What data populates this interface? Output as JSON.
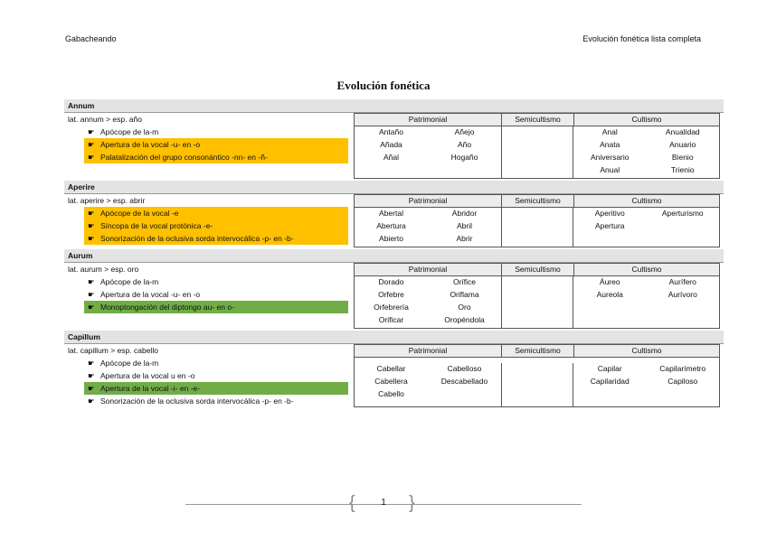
{
  "header": {
    "left": "Gabacheando",
    "right": "Evolución fonética lista completa"
  },
  "title": "Evolución fonética",
  "columns": [
    "Patrimonial",
    "Semicultismo",
    "Cultismo"
  ],
  "colors": {
    "orange": "#ffc000",
    "green": "#70ad47",
    "header_bg": "#e3e3e3"
  },
  "bullet_icon": "hand-pointing-icon",
  "blocks": [
    {
      "name": "Annum",
      "lat": "lat. annum > esp. año",
      "items": [
        {
          "text": "Apócope de la-m",
          "highlight": ""
        },
        {
          "text": "Apertura de la vocal -u- en -o",
          "highlight": "orange"
        },
        {
          "text": "Palatalización del grupo consonántico -nn- en -ñ-",
          "highlight": "orange"
        }
      ],
      "patrimonial": [
        "Antaño",
        "Añejo",
        "Añada",
        "Año",
        "Añal",
        "Hogaño"
      ],
      "semicultismo": [],
      "cultismo": [
        "Anal",
        "Anualidad",
        "Anata",
        "Anuario",
        "Aniversario",
        "Bienio",
        "Anual",
        "Trienio"
      ]
    },
    {
      "name": "Aperire",
      "lat": "lat. aperire > esp. abrir",
      "items": [
        {
          "text": "Apócope de la vocal -e",
          "highlight": "orange"
        },
        {
          "text": "Síncopa de la vocal protónica -e-",
          "highlight": "orange"
        },
        {
          "text": "Sonorización de la oclusiva sorda intervocálica -p- en -b-",
          "highlight": "orange"
        }
      ],
      "patrimonial": [
        "Abertal",
        "Abridor",
        "Abertura",
        "Abril",
        "Abierto",
        "Abrir"
      ],
      "semicultismo": [],
      "cultismo": [
        "Aperitivo",
        "Aperturismo",
        "Apertura"
      ]
    },
    {
      "name": "Aurum",
      "lat": "lat. aurum > esp. oro",
      "items": [
        {
          "text": "Apócope de la-m",
          "highlight": ""
        },
        {
          "text": "Apertura de la vocal -u- en -o",
          "highlight": ""
        },
        {
          "text": "Monoptongación del diptongo au- en o-",
          "highlight": "green"
        }
      ],
      "patrimonial": [
        "Dorado",
        "Orífice",
        "Orfebre",
        "Oriflama",
        "Orfebrería",
        "Oro",
        "Orificar",
        "Oropéndola"
      ],
      "semicultismo": [],
      "cultismo": [
        "Áureo",
        "Aurífero",
        "Aureola",
        "Aurívoro"
      ]
    },
    {
      "name": "Capillum",
      "lat": "lat. capillum > esp. cabello",
      "items": [
        {
          "text": "Apócope de la-m",
          "highlight": ""
        },
        {
          "text": "Apertura de la vocal u en -o",
          "highlight": ""
        },
        {
          "text": "Apertura de la vocal -i- en -e-",
          "highlight": "green"
        },
        {
          "text": "Sonorización de la oclusiva sorda intervocálica -p- en -b-",
          "highlight": ""
        }
      ],
      "patrimonial": [
        "Cabellar",
        "Cabelloso",
        "Cabellera",
        "Descabellado",
        "Cabello"
      ],
      "semicultismo": [],
      "cultismo": [
        "Capilar",
        "Capilarímetro",
        "Capilaridad",
        "Capiloso"
      ]
    }
  ],
  "footer": {
    "page": "1"
  }
}
